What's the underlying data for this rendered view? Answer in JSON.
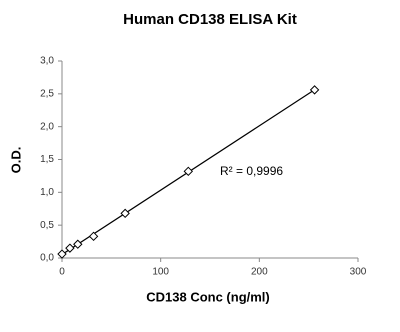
{
  "chart_data": {
    "type": "scatter",
    "title": "Human CD138 ELISA Kit",
    "x_label": "CD138 Conc (ng/ml)",
    "y_label": "O.D.",
    "annotation": "R² = 0,9996",
    "trendline": "linear",
    "x": [
      0,
      8,
      16,
      32,
      64,
      128,
      256
    ],
    "values": [
      0.06,
      0.15,
      0.21,
      0.33,
      0.68,
      1.32,
      2.56
    ],
    "color": "#000000",
    "xlim": [
      0,
      300
    ],
    "xticks": [
      0,
      100,
      200,
      300
    ],
    "ylim": [
      0,
      3
    ],
    "yticks": [
      {
        "value": 0,
        "label": "0,0"
      },
      {
        "value": 0.5,
        "label": "0,5"
      },
      {
        "value": 1,
        "label": "1,0"
      },
      {
        "value": 1.5,
        "label": "1,5"
      },
      {
        "value": 2,
        "label": "2,0"
      },
      {
        "value": 2.5,
        "label": "2,5"
      },
      {
        "value": 3,
        "label": "3,0"
      }
    ],
    "grid": false
  }
}
